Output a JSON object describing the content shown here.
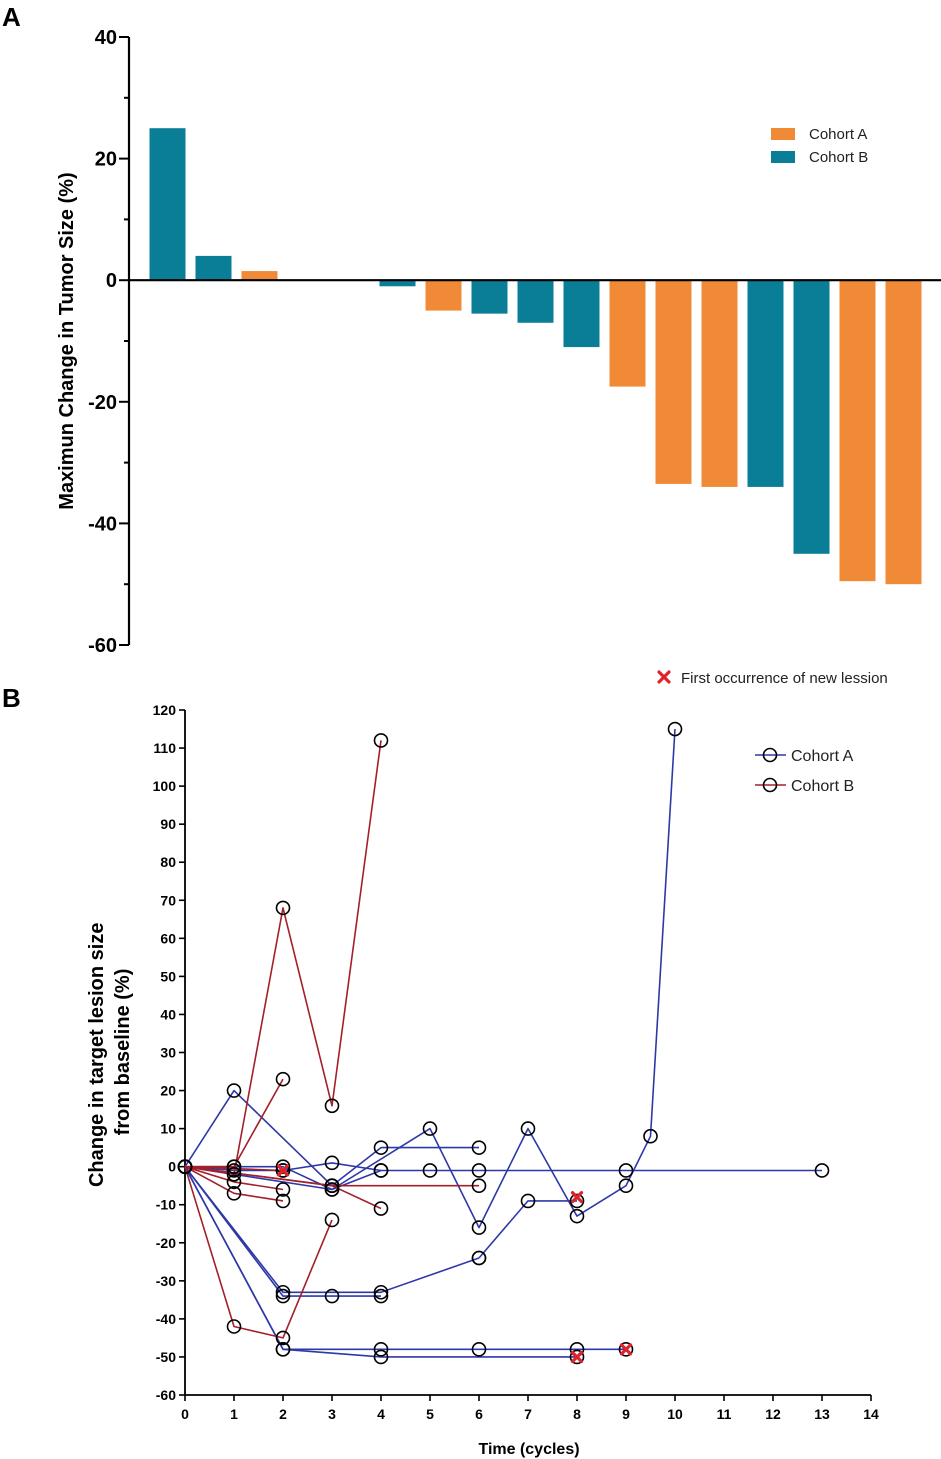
{
  "colors": {
    "cohort_a_bar": "#F08A36",
    "cohort_b_bar": "#0A7E96",
    "cohort_a_line": "#2E39A8",
    "cohort_b_line": "#A3202A",
    "marker": "#E0232B",
    "axis": "#000000"
  },
  "chart_data": [
    {
      "type": "bar",
      "panel": "A",
      "title": "",
      "xlabel": "",
      "ylabel": "Maximun Change in Tumor Size (%)",
      "ylim": [
        -60,
        40
      ],
      "yticks": [
        "40",
        "20",
        "0",
        "-20",
        "-40",
        "-60"
      ],
      "legend": {
        "placement": "top-right",
        "entries": [
          {
            "name": "Cohort A",
            "color": "#F08A36"
          },
          {
            "name": "Cohort B",
            "color": "#0A7E96"
          }
        ]
      },
      "bars": [
        {
          "cohort": "Cohort B",
          "value": 25
        },
        {
          "cohort": "Cohort B",
          "value": 4
        },
        {
          "cohort": "Cohort A",
          "value": 1.5
        },
        {
          "cohort": "Cohort A",
          "value": 0
        },
        {
          "cohort": "Cohort A",
          "value": 0
        },
        {
          "cohort": "Cohort B",
          "value": -1
        },
        {
          "cohort": "Cohort A",
          "value": -5
        },
        {
          "cohort": "Cohort B",
          "value": -5.5
        },
        {
          "cohort": "Cohort B",
          "value": -7
        },
        {
          "cohort": "Cohort B",
          "value": -11
        },
        {
          "cohort": "Cohort A",
          "value": -17.5
        },
        {
          "cohort": "Cohort A",
          "value": -33.5
        },
        {
          "cohort": "Cohort A",
          "value": -34
        },
        {
          "cohort": "Cohort B",
          "value": -34
        },
        {
          "cohort": "Cohort B",
          "value": -45
        },
        {
          "cohort": "Cohort A",
          "value": -49.5
        },
        {
          "cohort": "Cohort A",
          "value": -50
        }
      ]
    },
    {
      "type": "line",
      "panel": "B",
      "title": "",
      "xlabel": "Time (cycles)",
      "ylabel_lines": [
        "Change in target lesion size",
        "from baseline (%)"
      ],
      "xlim": [
        0,
        14
      ],
      "ylim": [
        -60,
        120
      ],
      "xticks": [
        "0",
        "1",
        "2",
        "3",
        "4",
        "5",
        "6",
        "7",
        "8",
        "9",
        "10",
        "11",
        "12",
        "13",
        "14"
      ],
      "yticks": [
        "120",
        "110",
        "100",
        "90",
        "80",
        "70",
        "60",
        "50",
        "40",
        "30",
        "20",
        "10",
        "0",
        "-10",
        "-20",
        "-30",
        "-40",
        "-50",
        "-60"
      ],
      "legend": {
        "placement": "top-right",
        "entries": [
          {
            "name": "Cohort A",
            "color": "#2E39A8"
          },
          {
            "name": "Cohort B",
            "color": "#A3202A"
          }
        ]
      },
      "marker_legend": "First occurrence of new lession",
      "series": [
        {
          "name": "Cohort A",
          "x": [
            0,
            1,
            3,
            4,
            6
          ],
          "y": [
            0,
            20,
            -5,
            5,
            5
          ]
        },
        {
          "name": "Cohort A",
          "x": [
            0,
            2,
            4,
            6
          ],
          "y": [
            0,
            -33,
            -33,
            -24
          ]
        },
        {
          "name": "Cohort A",
          "x": [
            0,
            2,
            3,
            4
          ],
          "y": [
            0,
            -34,
            -34,
            -34
          ]
        },
        {
          "name": "Cohort A",
          "x": [
            0,
            2,
            4,
            6,
            8,
            9
          ],
          "y": [
            0,
            -48,
            -48,
            -48,
            -48,
            -48
          ]
        },
        {
          "name": "Cohort A",
          "x": [
            0,
            2,
            4,
            8
          ],
          "y": [
            0,
            -48,
            -50,
            -50
          ]
        },
        {
          "name": "Cohort A",
          "x": [
            0,
            1,
            2,
            3,
            5,
            6,
            7,
            8,
            9,
            9.5,
            10
          ],
          "y": [
            0,
            0,
            0,
            -6,
            10,
            -16,
            10,
            -13,
            -5,
            8,
            115
          ]
        },
        {
          "name": "Cohort A",
          "x": [
            0,
            1,
            2,
            3,
            4,
            5,
            6,
            9,
            13
          ],
          "y": [
            0,
            -1,
            -1,
            1,
            -1,
            -1,
            -1,
            -1,
            -1
          ]
        },
        {
          "name": "Cohort A",
          "x": [
            0,
            3,
            4
          ],
          "y": [
            0,
            -6,
            -1
          ]
        },
        {
          "name": "Cohort A",
          "x": [
            6,
            7,
            8
          ],
          "y": [
            -24,
            -9,
            -9
          ]
        },
        {
          "name": "Cohort B",
          "x": [
            0,
            1,
            2,
            3,
            4
          ],
          "y": [
            0,
            -2,
            68,
            16,
            112
          ]
        },
        {
          "name": "Cohort B",
          "x": [
            0,
            1,
            2
          ],
          "y": [
            0,
            0,
            23
          ]
        },
        {
          "name": "Cohort B",
          "x": [
            0,
            1,
            2,
            3
          ],
          "y": [
            0,
            -42,
            -45,
            -14
          ]
        },
        {
          "name": "Cohort B",
          "x": [
            0,
            1,
            2
          ],
          "y": [
            0,
            -7,
            -9
          ]
        },
        {
          "name": "Cohort B",
          "x": [
            0,
            1,
            2
          ],
          "y": [
            0,
            -4,
            -6
          ]
        },
        {
          "name": "Cohort B",
          "x": [
            0,
            3,
            4
          ],
          "y": [
            0,
            -5,
            -11
          ]
        },
        {
          "name": "Cohort B",
          "x": [
            0,
            3,
            6
          ],
          "y": [
            0,
            -5,
            -5
          ]
        },
        {
          "name": "Cohort B",
          "x": [
            0,
            2
          ],
          "y": [
            0,
            -1
          ]
        }
      ],
      "new_lesion_markers": [
        {
          "x": 2,
          "y": -1
        },
        {
          "x": 8,
          "y": -8
        },
        {
          "x": 8,
          "y": -50
        },
        {
          "x": 9,
          "y": -48
        }
      ]
    }
  ],
  "panels": {
    "a": "A",
    "b": "B"
  }
}
